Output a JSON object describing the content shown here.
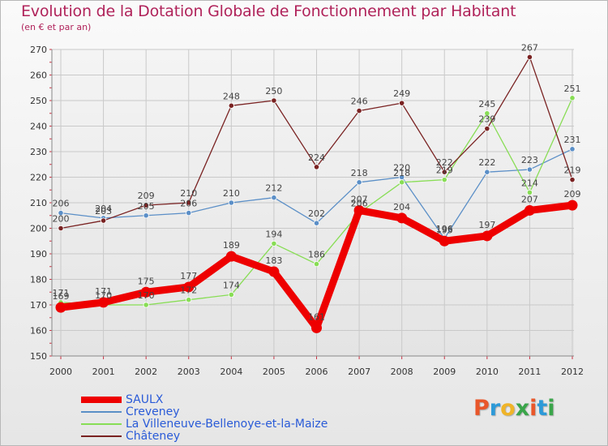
{
  "header": {
    "title": "Evolution de la Dotation Globale de Fonctionnement par Habitant",
    "subtitle": "(en € et par an)"
  },
  "logo": {
    "letters": [
      "P",
      "r",
      "o",
      "x",
      "i",
      "t",
      "i"
    ],
    "colors": [
      "#e8572a",
      "#2d9ad8",
      "#f0b428",
      "#3aa54a",
      "#e8572a",
      "#2d9ad8",
      "#3aa54a"
    ]
  },
  "chart_data": {
    "type": "line",
    "title": "Evolution de la Dotation Globale de Fonctionnement par Habitant",
    "subtitle": "(en € et par an)",
    "x": [
      "2000",
      "2001",
      "2002",
      "2003",
      "2004",
      "2005",
      "2006",
      "2007",
      "2008",
      "2009",
      "2010",
      "2011",
      "2012"
    ],
    "ylim": [
      150,
      270
    ],
    "yticks": [
      150,
      160,
      170,
      180,
      190,
      200,
      210,
      220,
      230,
      240,
      250,
      260,
      270
    ],
    "grid": true,
    "legend_position": "bottom-left",
    "series": [
      {
        "name": "SAULX",
        "color": "#ee0000",
        "width": 9,
        "values": [
          169,
          171,
          175,
          177,
          189,
          183,
          161,
          207,
          204,
          195,
          197,
          207,
          209
        ]
      },
      {
        "name": "Creveney",
        "color": "#5b8fc7",
        "width": 1.3,
        "values": [
          206,
          204,
          205,
          206,
          210,
          212,
          202,
          218,
          220,
          196,
          222,
          223,
          231
        ]
      },
      {
        "name": "La Villeneuve-Bellenoye-et-la-Maize",
        "color": "#88dd55",
        "width": 1.3,
        "values": [
          171,
          170,
          170,
          172,
          174,
          194,
          186,
          206,
          218,
          219,
          245,
          214,
          251
        ]
      },
      {
        "name": "Châteney",
        "color": "#7a2222",
        "width": 1.3,
        "values": [
          200,
          203,
          209,
          210,
          248,
          250,
          224,
          246,
          249,
          222,
          239,
          267,
          219
        ]
      }
    ]
  }
}
